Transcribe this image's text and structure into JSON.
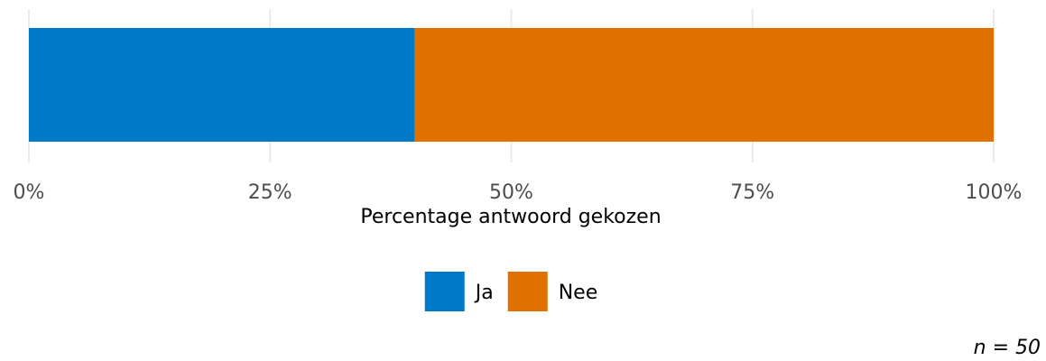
{
  "chart_data": {
    "type": "bar",
    "orientation": "horizontal",
    "stacked": true,
    "categories": [
      ""
    ],
    "series": [
      {
        "name": "Ja",
        "values": [
          40
        ],
        "color": "#0079C8"
      },
      {
        "name": "Nee",
        "values": [
          60
        ],
        "color": "#E07000"
      }
    ],
    "xlabel": "Percentage antwoord gekozen",
    "ylabel": "",
    "xlim": [
      0,
      100
    ],
    "xticks": [
      0,
      25,
      50,
      75,
      100
    ],
    "xtick_labels": [
      "0%",
      "25%",
      "50%",
      "75%",
      "100%"
    ],
    "grid": true,
    "legend_position": "bottom",
    "caption": "n = 50"
  }
}
